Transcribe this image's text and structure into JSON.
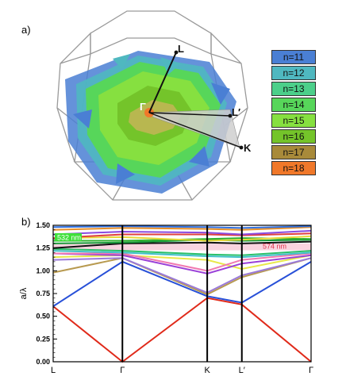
{
  "figure": {
    "panel_a_label": "a)",
    "panel_b_label": "b)"
  },
  "brillouin_zone": {
    "points": [
      "L",
      "Γ",
      "L′",
      "K"
    ]
  },
  "legend": {
    "items": [
      {
        "label": "n=11",
        "color": "#4a7fd4"
      },
      {
        "label": "n=12",
        "color": "#4fb8c0"
      },
      {
        "label": "n=13",
        "color": "#4ccf8a"
      },
      {
        "label": "n=14",
        "color": "#57d65a"
      },
      {
        "label": "n=15",
        "color": "#86e040"
      },
      {
        "label": "n=16",
        "color": "#74c42a"
      },
      {
        "label": "n=17",
        "color": "#a88a3a"
      },
      {
        "label": "n=18",
        "color": "#f0782a"
      }
    ]
  },
  "chart_data": {
    "type": "line",
    "ylabel": "a/λ",
    "ylim": [
      0,
      1.5
    ],
    "yticks": [
      "0.00",
      "0.25",
      "0.50",
      "0.75",
      "1.00",
      "1.25",
      "1.50"
    ],
    "path_labels": [
      "L",
      "Γ",
      "K",
      "L′",
      "Γ"
    ],
    "path_positions": [
      0,
      0.866,
      1.9267,
      2.3597,
      3.2257
    ],
    "annotations": [
      {
        "text": "532 nm",
        "y": 1.37,
        "color": "#3fe03a"
      },
      {
        "text": "574 nm",
        "y": 1.27,
        "color": "#e0304a"
      }
    ],
    "gap_band": [
      1.225,
      1.3
    ],
    "series": [
      {
        "color": "#e02a1a",
        "values": [
          [
            0,
            0.61
          ],
          [
            0.866,
            0.0
          ],
          [
            1.9267,
            0.7
          ],
          [
            2.3597,
            0.63
          ],
          [
            3.2257,
            0.0
          ]
        ]
      },
      {
        "color": "#2850d8",
        "values": [
          [
            0,
            0.61
          ],
          [
            0.866,
            1.1
          ],
          [
            1.9267,
            0.72
          ],
          [
            2.3597,
            0.65
          ],
          [
            3.2257,
            1.1
          ]
        ]
      },
      {
        "color": "#b89a50",
        "values": [
          [
            0,
            0.98
          ],
          [
            0.866,
            1.14
          ],
          [
            1.9267,
            0.74
          ],
          [
            2.3597,
            0.93
          ],
          [
            3.2257,
            1.14
          ]
        ]
      },
      {
        "color": "#9a7ad8",
        "values": [
          [
            0,
            1.12
          ],
          [
            0.866,
            1.14
          ],
          [
            1.9267,
            0.76
          ],
          [
            2.3597,
            0.95
          ],
          [
            3.2257,
            1.14
          ]
        ]
      },
      {
        "color": "#e8e84a",
        "values": [
          [
            0,
            1.15
          ],
          [
            0.866,
            1.17
          ],
          [
            1.9267,
            1.12
          ],
          [
            2.3597,
            1.02
          ],
          [
            3.2257,
            1.17
          ]
        ]
      },
      {
        "color": "#9a40d8",
        "values": [
          [
            0,
            1.19
          ],
          [
            0.866,
            1.17
          ],
          [
            1.9267,
            0.97
          ],
          [
            2.3597,
            1.08
          ],
          [
            3.2257,
            1.17
          ]
        ]
      },
      {
        "color": "#f07ab0",
        "values": [
          [
            0,
            1.19
          ],
          [
            0.866,
            1.19
          ],
          [
            1.9267,
            1.0
          ],
          [
            2.3597,
            1.12
          ],
          [
            3.2257,
            1.19
          ]
        ]
      },
      {
        "color": "#40c0c8",
        "values": [
          [
            0,
            1.22
          ],
          [
            0.866,
            1.2
          ],
          [
            1.9267,
            1.16
          ],
          [
            2.3597,
            1.15
          ],
          [
            3.2257,
            1.2
          ]
        ]
      },
      {
        "color": "#2ac06a",
        "values": [
          [
            0,
            1.24
          ],
          [
            0.866,
            1.22
          ],
          [
            1.9267,
            1.18
          ],
          [
            2.3597,
            1.17
          ],
          [
            3.2257,
            1.22
          ]
        ]
      },
      {
        "color": "#101010",
        "values": [
          [
            0,
            1.25
          ],
          [
            0.866,
            1.3
          ],
          [
            1.9267,
            1.31
          ],
          [
            2.3597,
            1.3
          ],
          [
            3.2257,
            1.32
          ]
        ]
      },
      {
        "color": "#1a9a3a",
        "values": [
          [
            0,
            1.3
          ],
          [
            0.866,
            1.31
          ],
          [
            1.9267,
            1.34
          ],
          [
            2.3597,
            1.33
          ],
          [
            3.2257,
            1.34
          ]
        ]
      },
      {
        "color": "#30b030",
        "values": [
          [
            0,
            1.33
          ],
          [
            0.866,
            1.33
          ],
          [
            1.9267,
            1.35
          ],
          [
            2.3597,
            1.36
          ],
          [
            3.2257,
            1.35
          ]
        ]
      },
      {
        "color": "#e8d83a",
        "values": [
          [
            0,
            1.36
          ],
          [
            0.866,
            1.37
          ],
          [
            1.9267,
            1.33
          ],
          [
            2.3597,
            1.34
          ],
          [
            3.2257,
            1.38
          ]
        ]
      },
      {
        "color": "#e04040",
        "values": [
          [
            0,
            1.36
          ],
          [
            0.866,
            1.4
          ],
          [
            1.9267,
            1.4
          ],
          [
            2.3597,
            1.39
          ],
          [
            3.2257,
            1.41
          ]
        ]
      },
      {
        "color": "#8a4ae0",
        "values": [
          [
            0,
            1.4
          ],
          [
            0.866,
            1.43
          ],
          [
            1.9267,
            1.42
          ],
          [
            2.3597,
            1.4
          ],
          [
            3.2257,
            1.44
          ]
        ]
      },
      {
        "color": "#e8902a",
        "values": [
          [
            0,
            1.45
          ],
          [
            0.866,
            1.47
          ],
          [
            1.9267,
            1.46
          ],
          [
            2.3597,
            1.45
          ],
          [
            3.2257,
            1.48
          ]
        ]
      },
      {
        "color": "#3070e0",
        "values": [
          [
            0,
            1.48
          ],
          [
            0.866,
            1.49
          ],
          [
            1.9267,
            1.48
          ],
          [
            2.3597,
            1.47
          ],
          [
            3.2257,
            1.49
          ]
        ]
      }
    ]
  }
}
